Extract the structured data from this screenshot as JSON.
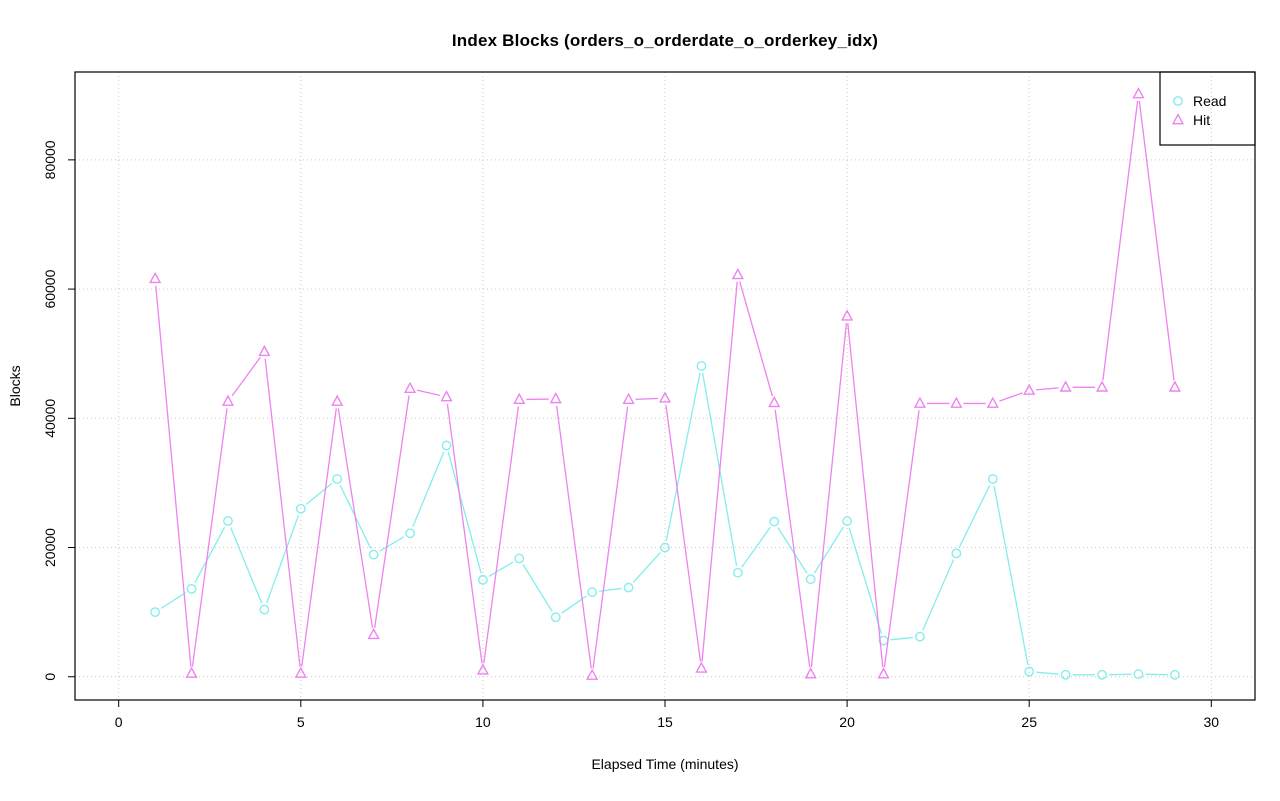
{
  "chart_data": {
    "type": "line",
    "title": "Index Blocks (orders_o_orderdate_o_orderkey_idx)",
    "xlabel": "Elapsed Time (minutes)",
    "ylabel": "Blocks",
    "xlim": [
      0,
      30
    ],
    "ylim": [
      0,
      90000
    ],
    "xticks": [
      0,
      5,
      10,
      15,
      20,
      25,
      30
    ],
    "yticks": [
      0,
      20000,
      40000,
      60000,
      80000
    ],
    "grid": true,
    "grid_color": "#C9C9C9",
    "legend": {
      "position": "top-right",
      "labels": [
        "Read",
        "Hit"
      ]
    },
    "x": [
      1,
      2,
      3,
      4,
      5,
      6,
      7,
      8,
      9,
      10,
      11,
      12,
      13,
      14,
      15,
      16,
      17,
      18,
      19,
      20,
      21,
      22,
      23,
      24,
      25,
      26,
      27,
      28,
      29
    ],
    "series": [
      {
        "name": "Read",
        "marker": "circle",
        "color": "#84EDED",
        "values": [
          10000,
          13600,
          24100,
          10400,
          26000,
          30600,
          18900,
          22200,
          35800,
          15000,
          18300,
          9200,
          13100,
          13800,
          20000,
          48100,
          16100,
          24000,
          15100,
          24100,
          5600,
          6200,
          19100,
          30600,
          800,
          300,
          300,
          400,
          300
        ]
      },
      {
        "name": "Hit",
        "marker": "triangle",
        "color": "#EE82EE",
        "values": [
          61600,
          500,
          42600,
          50300,
          500,
          42600,
          6500,
          44600,
          43300,
          1000,
          42900,
          43000,
          200,
          42900,
          43100,
          1300,
          62200,
          42400,
          400,
          55800,
          400,
          42300,
          42300,
          42300,
          44300,
          44800,
          44800,
          90200,
          44800
        ]
      }
    ]
  }
}
